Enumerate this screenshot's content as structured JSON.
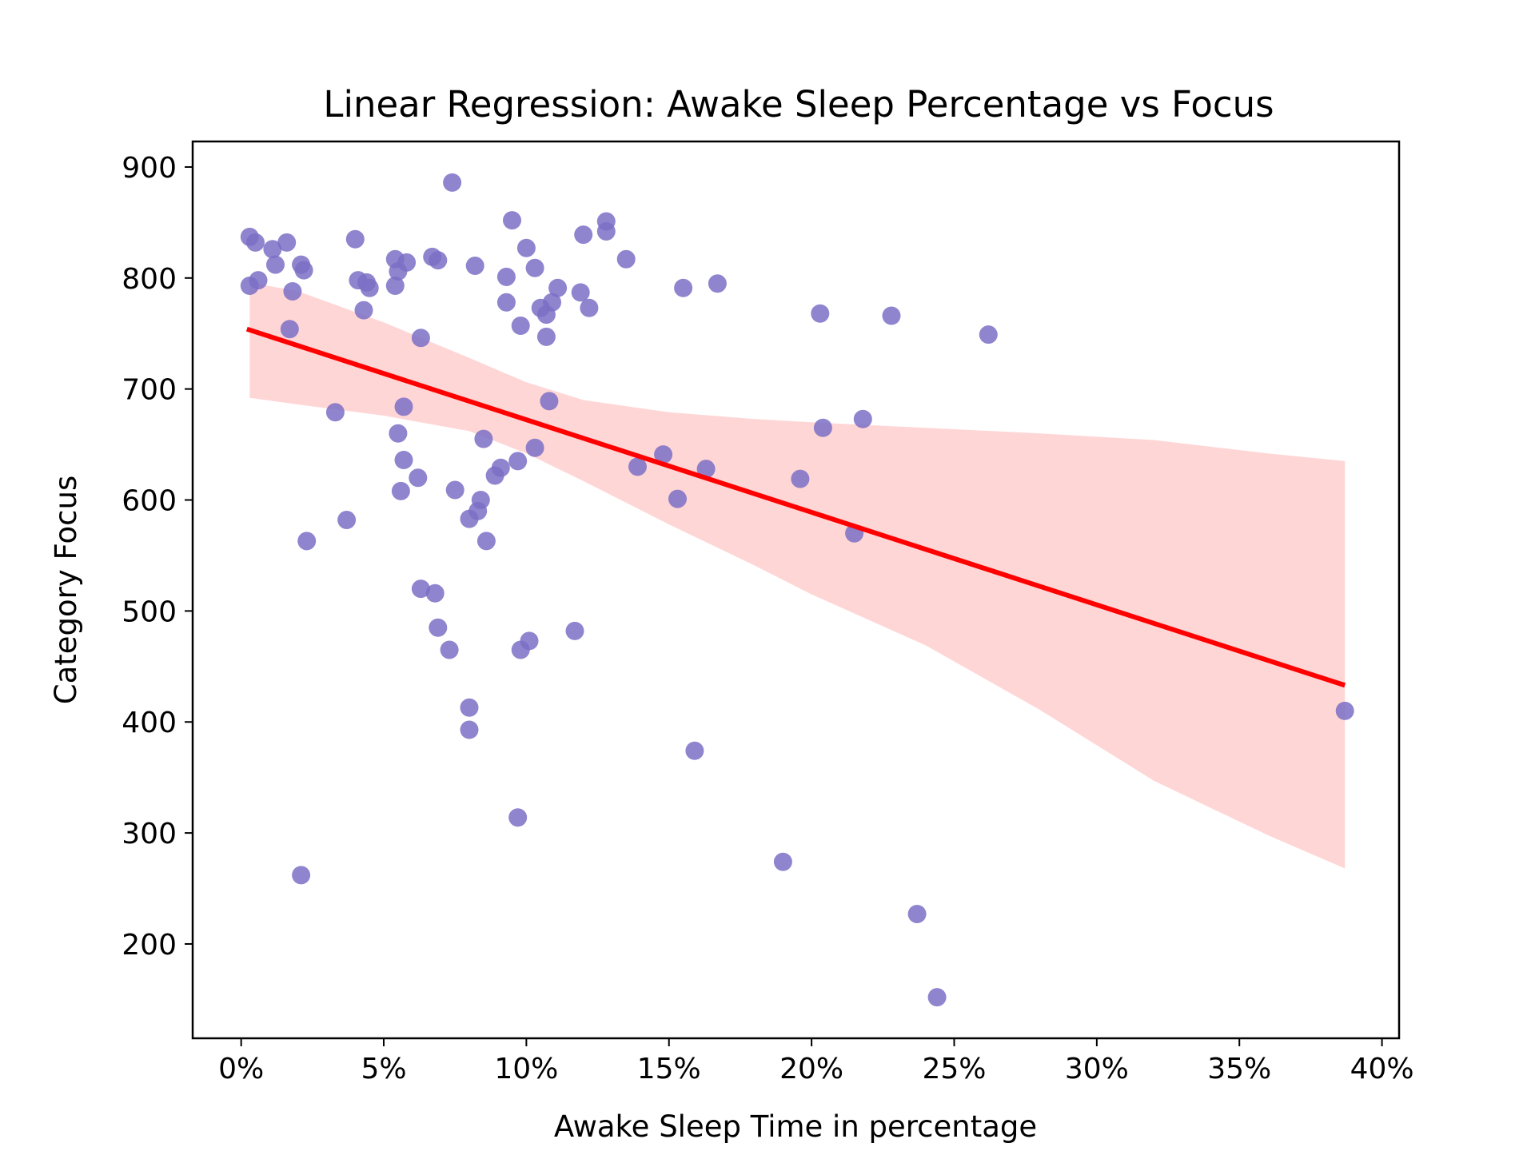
{
  "chart_data": {
    "type": "scatter",
    "title": "Linear Regression: Awake Sleep Percentage vs Focus",
    "xlabel": "Awake Sleep Time in percentage",
    "ylabel": "Category Focus",
    "xlim": [
      -0.017,
      0.406
    ],
    "ylim": [
      115,
      923
    ],
    "x_ticks": [
      0,
      0.05,
      0.1,
      0.15,
      0.2,
      0.25,
      0.3,
      0.35,
      0.4
    ],
    "x_tick_labels": [
      "0%",
      "5%",
      "10%",
      "15%",
      "20%",
      "25%",
      "30%",
      "35%",
      "40%"
    ],
    "y_ticks": [
      200,
      300,
      400,
      500,
      600,
      700,
      800,
      900
    ],
    "y_tick_labels": [
      "200",
      "300",
      "400",
      "500",
      "600",
      "700",
      "800",
      "900"
    ],
    "grid": false,
    "colors": {
      "points": "#7b6ec6",
      "regression_line": "#ff0000",
      "confidence_band": "#ffd6d6"
    },
    "points": [
      {
        "x": 0.003,
        "y": 837
      },
      {
        "x": 0.005,
        "y": 832
      },
      {
        "x": 0.011,
        "y": 826
      },
      {
        "x": 0.016,
        "y": 832
      },
      {
        "x": 0.003,
        "y": 793
      },
      {
        "x": 0.006,
        "y": 798
      },
      {
        "x": 0.012,
        "y": 812
      },
      {
        "x": 0.021,
        "y": 812
      },
      {
        "x": 0.022,
        "y": 807
      },
      {
        "x": 0.018,
        "y": 788
      },
      {
        "x": 0.017,
        "y": 754
      },
      {
        "x": 0.04,
        "y": 835
      },
      {
        "x": 0.041,
        "y": 798
      },
      {
        "x": 0.044,
        "y": 796
      },
      {
        "x": 0.045,
        "y": 791
      },
      {
        "x": 0.043,
        "y": 771
      },
      {
        "x": 0.054,
        "y": 817
      },
      {
        "x": 0.055,
        "y": 806
      },
      {
        "x": 0.058,
        "y": 814
      },
      {
        "x": 0.054,
        "y": 793
      },
      {
        "x": 0.067,
        "y": 819
      },
      {
        "x": 0.069,
        "y": 816
      },
      {
        "x": 0.074,
        "y": 886
      },
      {
        "x": 0.082,
        "y": 811
      },
      {
        "x": 0.063,
        "y": 746
      },
      {
        "x": 0.095,
        "y": 852
      },
      {
        "x": 0.1,
        "y": 827
      },
      {
        "x": 0.093,
        "y": 801
      },
      {
        "x": 0.103,
        "y": 809
      },
      {
        "x": 0.093,
        "y": 778
      },
      {
        "x": 0.098,
        "y": 757
      },
      {
        "x": 0.105,
        "y": 773
      },
      {
        "x": 0.107,
        "y": 767
      },
      {
        "x": 0.109,
        "y": 778
      },
      {
        "x": 0.111,
        "y": 791
      },
      {
        "x": 0.107,
        "y": 747
      },
      {
        "x": 0.12,
        "y": 839
      },
      {
        "x": 0.128,
        "y": 851
      },
      {
        "x": 0.128,
        "y": 842
      },
      {
        "x": 0.119,
        "y": 787
      },
      {
        "x": 0.122,
        "y": 773
      },
      {
        "x": 0.135,
        "y": 817
      },
      {
        "x": 0.155,
        "y": 791
      },
      {
        "x": 0.167,
        "y": 795
      },
      {
        "x": 0.108,
        "y": 689
      },
      {
        "x": 0.033,
        "y": 679
      },
      {
        "x": 0.057,
        "y": 684
      },
      {
        "x": 0.055,
        "y": 660
      },
      {
        "x": 0.085,
        "y": 655
      },
      {
        "x": 0.103,
        "y": 647
      },
      {
        "x": 0.057,
        "y": 636
      },
      {
        "x": 0.062,
        "y": 620
      },
      {
        "x": 0.097,
        "y": 635
      },
      {
        "x": 0.091,
        "y": 629
      },
      {
        "x": 0.089,
        "y": 622
      },
      {
        "x": 0.056,
        "y": 608
      },
      {
        "x": 0.075,
        "y": 609
      },
      {
        "x": 0.084,
        "y": 600
      },
      {
        "x": 0.083,
        "y": 590
      },
      {
        "x": 0.08,
        "y": 583
      },
      {
        "x": 0.037,
        "y": 582
      },
      {
        "x": 0.023,
        "y": 563
      },
      {
        "x": 0.086,
        "y": 563
      },
      {
        "x": 0.148,
        "y": 641
      },
      {
        "x": 0.139,
        "y": 630
      },
      {
        "x": 0.163,
        "y": 628
      },
      {
        "x": 0.153,
        "y": 601
      },
      {
        "x": 0.204,
        "y": 665
      },
      {
        "x": 0.218,
        "y": 673
      },
      {
        "x": 0.196,
        "y": 619
      },
      {
        "x": 0.215,
        "y": 570
      },
      {
        "x": 0.203,
        "y": 768
      },
      {
        "x": 0.228,
        "y": 766
      },
      {
        "x": 0.262,
        "y": 749
      },
      {
        "x": 0.063,
        "y": 520
      },
      {
        "x": 0.068,
        "y": 516
      },
      {
        "x": 0.069,
        "y": 485
      },
      {
        "x": 0.073,
        "y": 465
      },
      {
        "x": 0.098,
        "y": 465
      },
      {
        "x": 0.101,
        "y": 473
      },
      {
        "x": 0.117,
        "y": 482
      },
      {
        "x": 0.08,
        "y": 413
      },
      {
        "x": 0.08,
        "y": 393
      },
      {
        "x": 0.159,
        "y": 374
      },
      {
        "x": 0.097,
        "y": 314
      },
      {
        "x": 0.19,
        "y": 274
      },
      {
        "x": 0.021,
        "y": 262
      },
      {
        "x": 0.237,
        "y": 227
      },
      {
        "x": 0.244,
        "y": 152
      },
      {
        "x": 0.387,
        "y": 410
      }
    ],
    "regression_line": [
      {
        "x": 0.002,
        "y": 754
      },
      {
        "x": 0.387,
        "y": 433
      }
    ],
    "confidence_band": {
      "x": [
        0.003,
        0.02,
        0.05,
        0.08,
        0.1,
        0.12,
        0.15,
        0.18,
        0.2,
        0.24,
        0.28,
        0.32,
        0.36,
        0.387
      ],
      "upper": [
        796,
        788,
        760,
        728,
        706,
        690,
        679,
        673,
        670,
        665,
        660,
        654,
        642,
        635
      ],
      "lower": [
        692,
        686,
        676,
        662,
        642,
        617,
        578,
        541,
        515,
        469,
        411,
        347,
        298,
        268
      ]
    }
  }
}
